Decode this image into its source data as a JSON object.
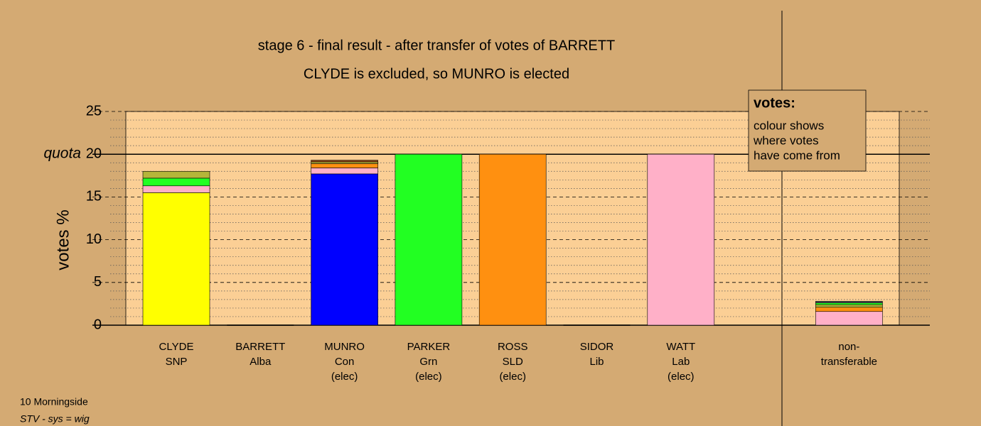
{
  "chart_data": {
    "type": "stacked-bar",
    "title": "stage 6 - final result - after transfer of votes of BARRETT",
    "subtitle": "CLYDE is excluded, so MUNRO is elected",
    "y_label": "votes %",
    "quota_label": "quota",
    "quota": 20,
    "ylim": [
      0,
      25
    ],
    "yticks": [
      0,
      5,
      10,
      15,
      20,
      25
    ],
    "minor_yticks": [
      1,
      2,
      3,
      4,
      6,
      7,
      8,
      9,
      11,
      12,
      13,
      14,
      16,
      17,
      18,
      19,
      21,
      22,
      23,
      24
    ],
    "categories": [
      [
        "CLYDE",
        "SNP"
      ],
      [
        "BARRETT",
        "Alba"
      ],
      [
        "MUNRO",
        "Con",
        "(elec)"
      ],
      [
        "PARKER",
        "Grn",
        "(elec)"
      ],
      [
        "ROSS",
        "SLD",
        "(elec)"
      ],
      [
        "SIDOR",
        "Lib"
      ],
      [
        "WATT",
        "Lab",
        "(elec)"
      ],
      [
        "non-",
        "transferable"
      ]
    ],
    "stacks": [
      [
        {
          "color": "#ffff00",
          "value": 15.5
        },
        {
          "color": "#ffb0c8",
          "value": 0.8
        },
        {
          "color": "#22ff22",
          "value": 0.9
        },
        {
          "color": "#b5b53a",
          "value": 0.8
        }
      ],
      [],
      [
        {
          "color": "#0000ff",
          "value": 17.7
        },
        {
          "color": "#ffb0c8",
          "value": 0.7
        },
        {
          "color": "#ff9010",
          "value": 0.5
        },
        {
          "color": "#b5b53a",
          "value": 0.2
        },
        {
          "color": "#8b4513",
          "value": 0.2
        }
      ],
      [
        {
          "color": "#22ff22",
          "value": 20
        }
      ],
      [
        {
          "color": "#ff9010",
          "value": 20
        }
      ],
      [],
      [
        {
          "color": "#ffb0c8",
          "value": 20
        }
      ],
      [
        {
          "color": "#ffb0c8",
          "value": 1.6
        },
        {
          "color": "#ff9010",
          "value": 0.5
        },
        {
          "color": "#b5b53a",
          "value": 0.3
        },
        {
          "color": "#22ff22",
          "value": 0.2
        },
        {
          "color": "#555555",
          "value": 0.2
        }
      ]
    ],
    "legend_box": {
      "title": "votes:",
      "lines": [
        "colour shows",
        "where votes",
        "have come from"
      ]
    },
    "footer": [
      "10 Morningside",
      "STV - sys = wig"
    ]
  }
}
